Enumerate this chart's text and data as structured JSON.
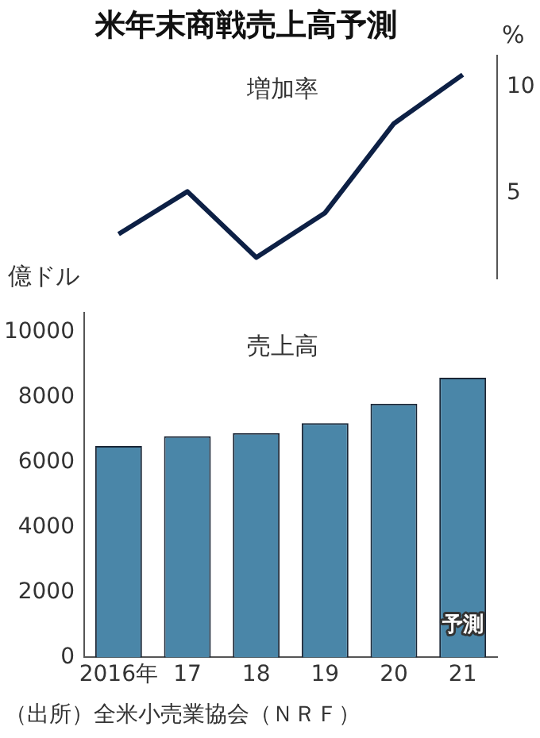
{
  "chart_data": [
    {
      "type": "line",
      "title": "米年末商戦売上高予測",
      "ylabel": "%",
      "categories": [
        null,
        null,
        null,
        null,
        null,
        null
      ],
      "series": [
        {
          "name": "増加率",
          "color": "#0d2045",
          "values": [
            3.1,
            5.1,
            2.0,
            4.1,
            8.3,
            10.6
          ]
        }
      ],
      "ylim": [
        1,
        11.5
      ],
      "yticks": [
        5,
        10
      ],
      "tick_labels": "y",
      "grid": false,
      "legend": false,
      "marker": "none"
    },
    {
      "type": "bar",
      "ylabel": "億ドル",
      "categories": [
        "2016年",
        "17",
        "18",
        "19",
        "20",
        "21"
      ],
      "series": [
        {
          "name": "売上高",
          "color": "#4a86a8",
          "values": [
            6500,
            6800,
            6900,
            7200,
            7800,
            8600
          ]
        }
      ],
      "ylim": [
        0,
        10600
      ],
      "yticks": [
        0,
        2000,
        4000,
        6000,
        8000,
        10000
      ],
      "grid": false,
      "legend": false,
      "annotations": [
        "予測",
        "（出所）全米小売業協会（ＮＲＦ）"
      ]
    }
  ]
}
